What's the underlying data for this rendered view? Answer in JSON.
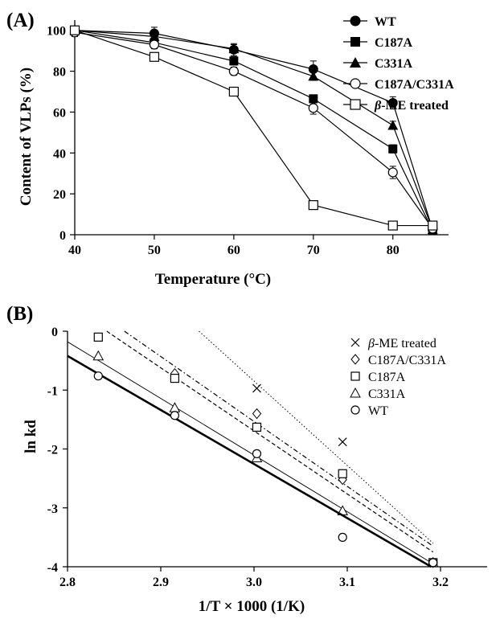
{
  "chart_data": [
    {
      "type": "line",
      "panel_label": "(A)",
      "title": "",
      "xlabel": "Temperature (°C)",
      "ylabel": "Content of VLPs (%)",
      "xlim": [
        40,
        87
      ],
      "ylim": [
        0,
        105
      ],
      "x_ticks": [
        40,
        50,
        60,
        70,
        80
      ],
      "y_ticks": [
        0,
        20,
        40,
        60,
        80,
        100
      ],
      "legend_position": "right",
      "series": [
        {
          "name": "WT",
          "marker": "filled-circle",
          "x": [
            40,
            50,
            60,
            70,
            80,
            85
          ],
          "y": [
            100,
            98.5,
            90.5,
            81,
            64.5,
            2.5
          ],
          "err": [
            2,
            3,
            3,
            4,
            3,
            1
          ]
        },
        {
          "name": "C187A",
          "marker": "filled-square",
          "x": [
            40,
            50,
            60,
            70,
            80,
            85
          ],
          "y": [
            100,
            94,
            85,
            66.5,
            42,
            2
          ],
          "err": [
            2,
            2,
            2,
            2,
            2,
            1
          ]
        },
        {
          "name": "C331A",
          "marker": "filled-triangle",
          "x": [
            40,
            50,
            60,
            70,
            80,
            85
          ],
          "y": [
            100,
            97,
            91,
            77.5,
            53.5,
            2.5
          ],
          "err": [
            2,
            2,
            2,
            2,
            2,
            1
          ]
        },
        {
          "name": "C187A/C331A",
          "marker": "open-circle",
          "x": [
            40,
            50,
            60,
            70,
            80,
            85
          ],
          "y": [
            99,
            93,
            80,
            62,
            30.5,
            3
          ],
          "err": [
            2,
            2,
            2,
            3,
            3,
            1
          ]
        },
        {
          "name": "β-ME treated",
          "marker": "open-square",
          "x": [
            40,
            50,
            60,
            70,
            80,
            85
          ],
          "y": [
            100,
            87,
            70,
            14.5,
            4.5,
            4.5
          ],
          "err": [
            2,
            2,
            1,
            1,
            1,
            1
          ]
        }
      ]
    },
    {
      "type": "scatter",
      "panel_label": "(B)",
      "title": "",
      "xlabel": "1/T × 1000 (1/K)",
      "ylabel": "ln kd",
      "xlim": [
        2.8,
        3.25
      ],
      "ylim": [
        -4,
        0
      ],
      "x_ticks": [
        "2.8",
        "2.9",
        "3.0",
        "3.1",
        "3.2"
      ],
      "y_ticks": [
        "0",
        "-1",
        "-2",
        "-3",
        "-4"
      ],
      "legend_position": "top-right",
      "series": [
        {
          "name": "β-ME treated",
          "marker": "cross",
          "line": "dotted",
          "x": [
            3.003,
            3.095,
            3.192
          ],
          "y": [
            -0.97,
            -1.88,
            -3.93
          ],
          "fit": [
            [
              2.941,
              0
            ],
            [
              3.192,
              -3.6
            ]
          ]
        },
        {
          "name": "C187A/C331A",
          "marker": "diamond",
          "line": "dash-dot",
          "x": [
            2.915,
            3.003,
            3.095,
            3.192
          ],
          "y": [
            -0.72,
            -1.4,
            -2.52,
            -3.93
          ],
          "fit": [
            [
              2.861,
              0
            ],
            [
              3.192,
              -3.65
            ]
          ]
        },
        {
          "name": "C187A",
          "marker": "open-square",
          "line": "dashed",
          "x": [
            2.833,
            2.915,
            3.003,
            3.095,
            3.192
          ],
          "y": [
            -0.1,
            -0.8,
            -1.63,
            -2.42,
            -3.93
          ],
          "fit": [
            [
              2.842,
              0
            ],
            [
              3.192,
              -3.75
            ]
          ]
        },
        {
          "name": "C331A",
          "marker": "open-triangle",
          "line": "thin-solid",
          "x": [
            2.833,
            2.915,
            3.003,
            3.095,
            3.192
          ],
          "y": [
            -0.42,
            -1.3,
            -2.15,
            -3.05,
            -3.93
          ],
          "fit": [
            [
              2.8,
              -0.18
            ],
            [
              3.192,
              -3.95
            ]
          ]
        },
        {
          "name": "WT",
          "marker": "open-circle",
          "line": "thick-solid",
          "x": [
            2.833,
            2.915,
            3.003,
            3.095,
            3.192
          ],
          "y": [
            -0.76,
            -1.43,
            -2.08,
            -3.5,
            -3.93
          ],
          "fit": [
            [
              2.8,
              -0.42
            ],
            [
              3.19,
              -4
            ]
          ]
        }
      ]
    }
  ]
}
